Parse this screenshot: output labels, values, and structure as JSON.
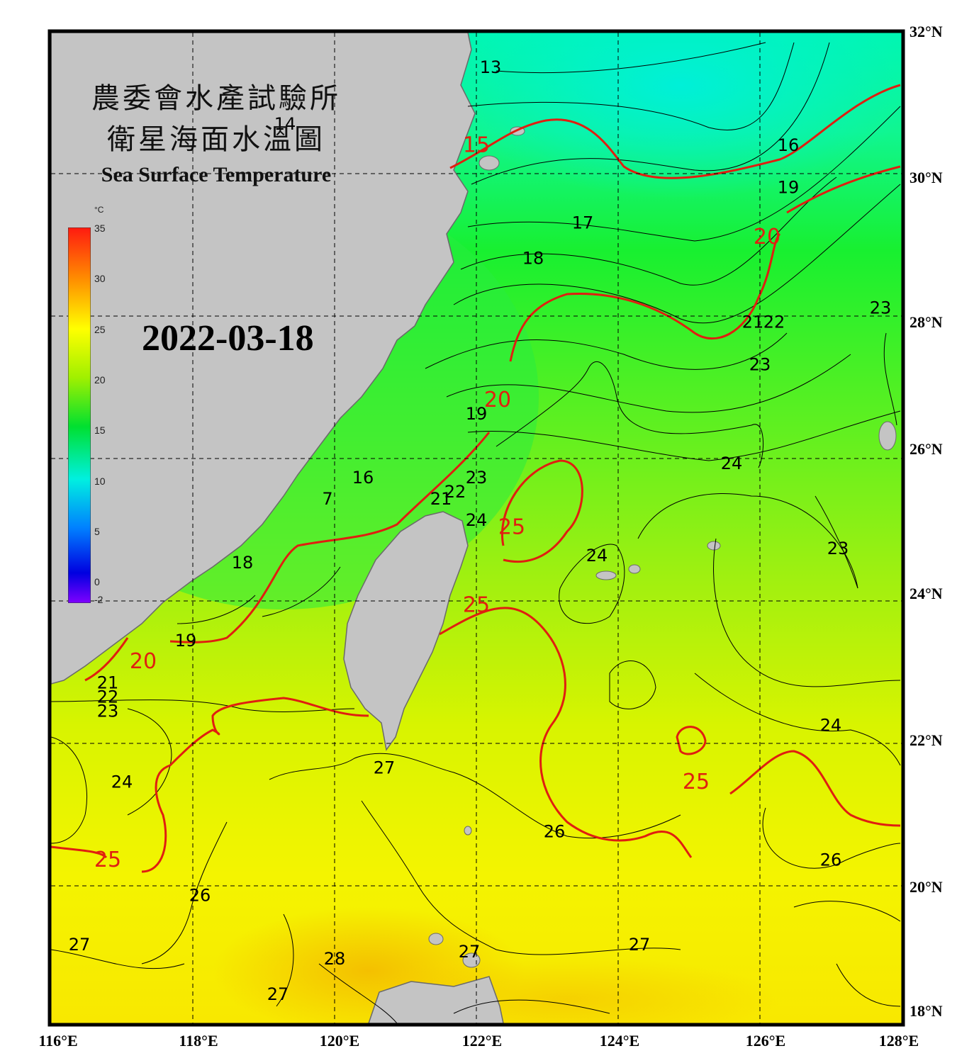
{
  "title": {
    "org_zh": "農委會水產試驗所",
    "product_zh": "衛星海面水溫圖",
    "product_en": "Sea Surface Temperature"
  },
  "date": "2022-03-18",
  "colorbar": {
    "unit": "°C",
    "ticks": [
      "35",
      "30",
      "25",
      "20",
      "15",
      "10",
      "5",
      "0",
      "-2"
    ],
    "range": [
      -2,
      35
    ]
  },
  "axes": {
    "lat_labels": [
      "32°N",
      "30°N",
      "28°N",
      "26°N",
      "24°N",
      "22°N",
      "20°N",
      "18°N"
    ],
    "lon_labels": [
      "116°E",
      "118°E",
      "120°E",
      "122°E",
      "124°E",
      "126°E",
      "128°E"
    ],
    "lat_range": [
      18,
      32
    ],
    "lon_range": [
      116,
      128
    ],
    "grid": "dashed"
  },
  "contour_labels": [
    {
      "text": "13",
      "lon": 122.2,
      "lat": 31.5,
      "major": false
    },
    {
      "text": "14",
      "lon": 119.3,
      "lat": 30.7,
      "major": false
    },
    {
      "text": "15",
      "lon": 122.0,
      "lat": 30.4,
      "major": true
    },
    {
      "text": "16",
      "lon": 126.4,
      "lat": 30.4,
      "major": false
    },
    {
      "text": "19",
      "lon": 126.4,
      "lat": 29.8,
      "major": false
    },
    {
      "text": "20",
      "lon": 126.1,
      "lat": 29.1,
      "major": true
    },
    {
      "text": "17",
      "lon": 123.5,
      "lat": 29.3,
      "major": false
    },
    {
      "text": "18",
      "lon": 122.8,
      "lat": 28.8,
      "major": false
    },
    {
      "text": "21",
      "lon": 125.9,
      "lat": 27.9,
      "major": false
    },
    {
      "text": "22",
      "lon": 126.2,
      "lat": 27.9,
      "major": false
    },
    {
      "text": "23",
      "lon": 126.0,
      "lat": 27.3,
      "major": false
    },
    {
      "text": "23",
      "lon": 127.7,
      "lat": 28.1,
      "major": false
    },
    {
      "text": "20",
      "lon": 122.3,
      "lat": 26.8,
      "major": true
    },
    {
      "text": "19",
      "lon": 122.0,
      "lat": 26.6,
      "major": false
    },
    {
      "text": "24",
      "lon": 125.6,
      "lat": 25.9,
      "major": false
    },
    {
      "text": "16",
      "lon": 120.4,
      "lat": 25.7,
      "major": false
    },
    {
      "text": "7",
      "lon": 119.9,
      "lat": 25.4,
      "major": false
    },
    {
      "text": "21",
      "lon": 121.5,
      "lat": 25.4,
      "major": false
    },
    {
      "text": "22",
      "lon": 121.7,
      "lat": 25.5,
      "major": false
    },
    {
      "text": "23",
      "lon": 122.0,
      "lat": 25.7,
      "major": false
    },
    {
      "text": "24",
      "lon": 122.0,
      "lat": 25.1,
      "major": false
    },
    {
      "text": "25",
      "lon": 122.5,
      "lat": 25.0,
      "major": true
    },
    {
      "text": "23",
      "lon": 127.1,
      "lat": 24.7,
      "major": false
    },
    {
      "text": "24",
      "lon": 123.7,
      "lat": 24.6,
      "major": false
    },
    {
      "text": "18",
      "lon": 118.7,
      "lat": 24.5,
      "major": false
    },
    {
      "text": "25",
      "lon": 122.0,
      "lat": 23.9,
      "major": true
    },
    {
      "text": "19",
      "lon": 117.9,
      "lat": 23.4,
      "major": false
    },
    {
      "text": "20",
      "lon": 117.3,
      "lat": 23.1,
      "major": true
    },
    {
      "text": "21",
      "lon": 116.8,
      "lat": 22.8,
      "major": false
    },
    {
      "text": "22",
      "lon": 116.8,
      "lat": 22.6,
      "major": false
    },
    {
      "text": "23",
      "lon": 116.8,
      "lat": 22.4,
      "major": false
    },
    {
      "text": "24",
      "lon": 127.0,
      "lat": 22.2,
      "major": false
    },
    {
      "text": "27",
      "lon": 120.7,
      "lat": 21.6,
      "major": false
    },
    {
      "text": "24",
      "lon": 117.0,
      "lat": 21.4,
      "major": false
    },
    {
      "text": "25",
      "lon": 125.1,
      "lat": 21.4,
      "major": true
    },
    {
      "text": "26",
      "lon": 123.1,
      "lat": 20.7,
      "major": false
    },
    {
      "text": "25",
      "lon": 116.8,
      "lat": 20.3,
      "major": true
    },
    {
      "text": "26",
      "lon": 127.0,
      "lat": 20.3,
      "major": false
    },
    {
      "text": "26",
      "lon": 118.1,
      "lat": 19.8,
      "major": false
    },
    {
      "text": "27",
      "lon": 116.4,
      "lat": 19.1,
      "major": false
    },
    {
      "text": "28",
      "lon": 120.0,
      "lat": 18.9,
      "major": false
    },
    {
      "text": "27",
      "lon": 121.9,
      "lat": 19.0,
      "major": false
    },
    {
      "text": "27",
      "lon": 124.3,
      "lat": 19.1,
      "major": false
    },
    {
      "text": "27",
      "lon": 119.2,
      "lat": 18.4,
      "major": false
    }
  ]
}
